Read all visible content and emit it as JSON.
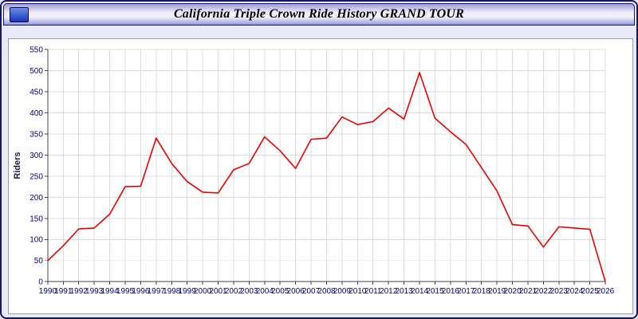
{
  "window": {
    "title": "California Triple Crown Ride History GRAND TOUR"
  },
  "colors": {
    "line": "#ee0000",
    "grid": "#dcdcdc",
    "axis": "#444444",
    "tick_text": "#00008b",
    "panel_bg": "#ffffff",
    "page_bg": "#e9e9f7",
    "frame": "#16166b"
  },
  "chart_data": {
    "type": "line",
    "title": "California Triple Crown Ride History GRAND TOUR",
    "xlabel": "",
    "ylabel": "Riders",
    "x": [
      1990,
      1991,
      1992,
      1993,
      1994,
      1995,
      1996,
      1997,
      1998,
      1999,
      2000,
      2001,
      2002,
      2003,
      2004,
      2005,
      2006,
      2007,
      2008,
      2009,
      2010,
      2011,
      2012,
      2013,
      2014,
      2015,
      2016,
      2017,
      2018,
      2019,
      2020,
      2021,
      2022,
      2023,
      2024,
      2025,
      2026
    ],
    "series": [
      {
        "name": "Riders",
        "color": "#ee0000",
        "values": [
          50,
          85,
          125,
          127,
          160,
          225,
          226,
          340,
          280,
          237,
          212,
          210,
          265,
          280,
          343,
          310,
          268,
          337,
          340,
          390,
          372,
          379,
          411,
          385,
          495,
          387,
          355,
          325,
          270,
          215,
          135,
          132,
          82,
          130,
          127,
          124,
          0
        ]
      }
    ],
    "ylim": [
      0,
      550
    ],
    "ytick_step": 50,
    "grid": true,
    "legend_position": "none"
  }
}
